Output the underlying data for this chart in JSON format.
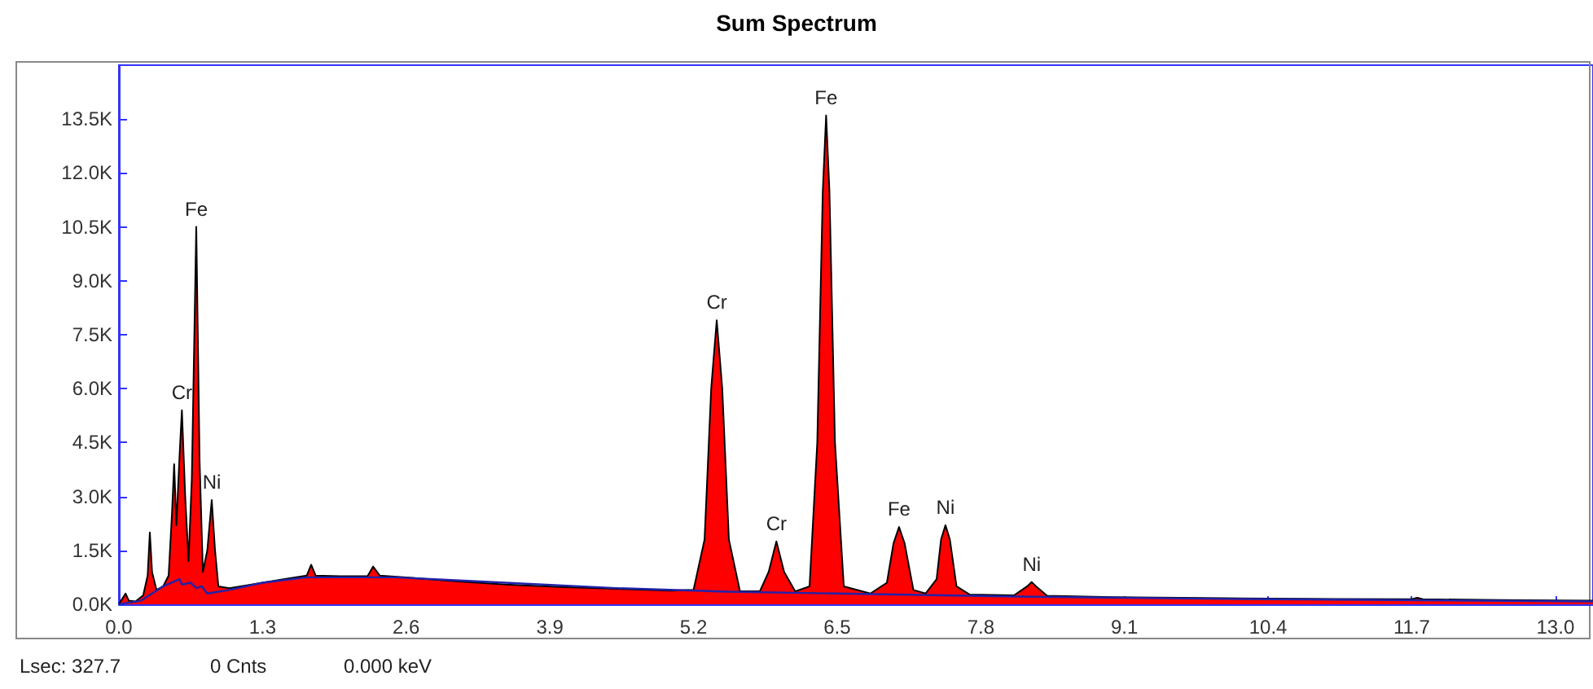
{
  "chart_data": {
    "type": "area",
    "title": "Sum Spectrum",
    "xlim": [
      0,
      13.34
    ],
    "ylim": [
      0,
      15000
    ],
    "xticks": [
      {
        "value": 0,
        "label": "0.0"
      },
      1.3,
      2.6,
      3.9,
      5.2,
      6.5,
      7.8,
      9.1,
      10.4,
      11.7,
      {
        "value": 13,
        "label": "13.0"
      }
    ],
    "yticks": [
      {
        "value": 0,
        "label": "0.0K"
      },
      {
        "value": 1500,
        "label": "1.5K"
      },
      {
        "value": 3000,
        "label": "3.0K"
      },
      {
        "value": 4500,
        "label": "4.5K"
      },
      {
        "value": 6000,
        "label": "6.0K"
      },
      {
        "value": 7500,
        "label": "7.5K"
      },
      {
        "value": 9000,
        "label": "9.0K"
      },
      {
        "value": 10500,
        "label": "10.5K"
      },
      {
        "value": 12000,
        "label": "12.0K"
      },
      {
        "value": 13500,
        "label": "13.5K"
      }
    ],
    "grid": false,
    "marker": "none",
    "series": [
      {
        "color": "#ff0000",
        "x": [
          0,
          0.03,
          0.06,
          0.09,
          0.15,
          0.22,
          0.26,
          0.28,
          0.3,
          0.34,
          0.4,
          0.45,
          0.48,
          0.5,
          0.52,
          0.55,
          0.57,
          0.6,
          0.63,
          0.66,
          0.7,
          0.73,
          0.76,
          0.8,
          0.84,
          0.87,
          0.9,
          1.0,
          1.2,
          1.5,
          1.7,
          1.74,
          1.78,
          2.0,
          2.25,
          2.3,
          2.36,
          2.6,
          3.0,
          3.5,
          4.0,
          4.5,
          5.0,
          5.2,
          5.3,
          5.36,
          5.41,
          5.46,
          5.52,
          5.62,
          5.8,
          5.88,
          5.95,
          6.02,
          6.12,
          6.25,
          6.32,
          6.37,
          6.4,
          6.43,
          6.48,
          6.56,
          6.8,
          6.95,
          7.01,
          7.06,
          7.11,
          7.19,
          7.3,
          7.4,
          7.44,
          7.48,
          7.52,
          7.58,
          7.7,
          8.1,
          8.22,
          8.26,
          8.3,
          8.4,
          9.0,
          10.0,
          11.0,
          11.7,
          11.75,
          11.8,
          12.5,
          13.0,
          13.34
        ],
        "values": [
          0,
          150,
          300,
          100,
          80,
          250,
          800,
          2000,
          900,
          400,
          500,
          800,
          2500,
          3900,
          2200,
          4200,
          5400,
          3000,
          1200,
          3500,
          10500,
          4000,
          900,
          1500,
          2900,
          1500,
          500,
          450,
          550,
          700,
          800,
          1100,
          800,
          780,
          780,
          1050,
          800,
          750,
          650,
          550,
          480,
          430,
          380,
          400,
          1800,
          6000,
          7900,
          6000,
          1800,
          370,
          360,
          900,
          1750,
          900,
          360,
          500,
          4500,
          11500,
          13600,
          11500,
          4500,
          500,
          300,
          600,
          1700,
          2150,
          1700,
          400,
          300,
          700,
          1800,
          2200,
          1800,
          500,
          270,
          250,
          500,
          620,
          500,
          240,
          200,
          170,
          150,
          140,
          180,
          140,
          120,
          110,
          100
        ]
      },
      {
        "type": "line",
        "color": "#2222aa",
        "x": [
          0,
          0.2,
          0.4,
          0.55,
          0.57,
          0.65,
          0.7,
          0.75,
          0.8,
          1.0,
          1.3,
          1.7,
          2.5,
          3.5,
          4.5,
          5.5,
          6.5,
          8.0,
          10.0,
          13.34
        ],
        "values": [
          0,
          100,
          500,
          700,
          550,
          600,
          450,
          500,
          300,
          400,
          600,
          750,
          750,
          600,
          450,
          350,
          300,
          220,
          150,
          80
        ]
      }
    ],
    "annotations": [
      {
        "text": "Cr",
        "x": 0.57,
        "y": 5400
      },
      {
        "text": "Fe",
        "x": 0.7,
        "y": 10500
      },
      {
        "text": "Ni",
        "x": 0.84,
        "y": 2900
      },
      {
        "text": "Cr",
        "x": 5.41,
        "y": 7900
      },
      {
        "text": "Cr",
        "x": 5.95,
        "y": 1750
      },
      {
        "text": "Fe",
        "x": 6.4,
        "y": 13600
      },
      {
        "text": "Fe",
        "x": 7.06,
        "y": 2150
      },
      {
        "text": "Ni",
        "x": 7.48,
        "y": 2200
      },
      {
        "text": "Ni",
        "x": 8.26,
        "y": 620
      },
      "Lsec: 327.7",
      "0 Cnts",
      "0.000 keV"
    ]
  }
}
